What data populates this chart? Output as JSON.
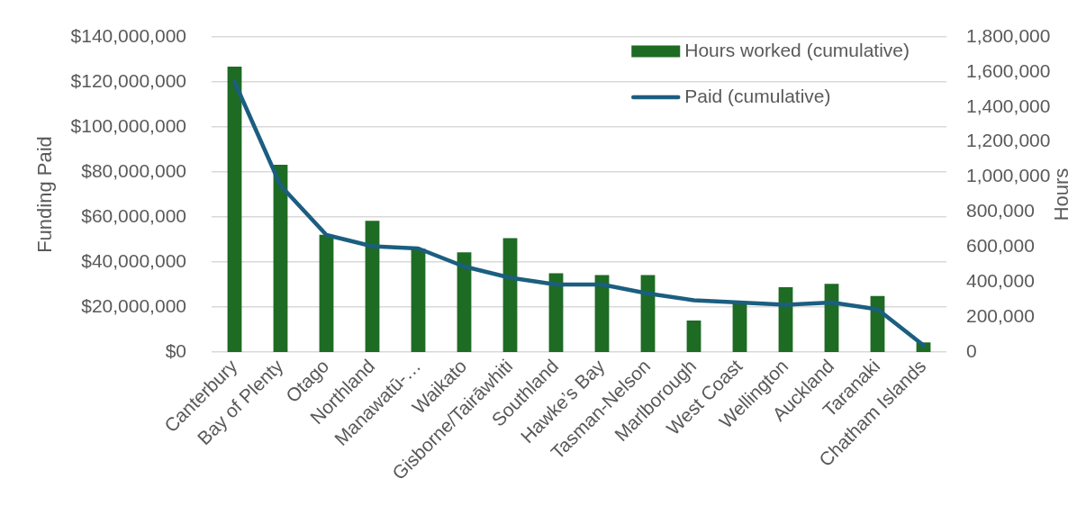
{
  "chart_data": {
    "type": "bar",
    "categories": [
      "Canterbury",
      "Bay of Plenty",
      "Otago",
      "Northland",
      "Manawatū-…",
      "Waikato",
      "Gisborne/Tairāwhiti",
      "Southland",
      "Hawke’s Bay",
      "Tasman-Nelson",
      "Marlborough",
      "West Coast",
      "Wellington",
      "Auckland",
      "Taranaki",
      "Chatham Islands"
    ],
    "ylabel": "Funding Paid",
    "y2label": "Hours",
    "ylim": [
      0,
      140000000
    ],
    "yticks": [
      {
        "value": 0,
        "label": "$0"
      },
      {
        "value": 20000000,
        "label": "$20,000,000"
      },
      {
        "value": 40000000,
        "label": "$40,000,000"
      },
      {
        "value": 60000000,
        "label": "$60,000,000"
      },
      {
        "value": 80000000,
        "label": "$80,000,000"
      },
      {
        "value": 100000000,
        "label": "$100,000,000"
      },
      {
        "value": 120000000,
        "label": "$120,000,000"
      },
      {
        "value": 140000000,
        "label": "$140,000,000"
      }
    ],
    "y2lim": [
      0,
      1800000
    ],
    "y2ticks": [
      0,
      {
        "value": 200000,
        "label": "200,000"
      },
      {
        "value": 400000,
        "label": "400,000"
      },
      {
        "value": 600000,
        "label": "600,000"
      },
      {
        "value": 800000,
        "label": "800,000"
      },
      {
        "value": 1000000,
        "label": "1,000,000"
      },
      {
        "value": 1200000,
        "label": "1,200,000"
      },
      {
        "value": 1400000,
        "label": "1,400,000"
      },
      {
        "value": 1600000,
        "label": "1,600,000"
      },
      {
        "value": 1800000,
        "label": "1,800,000"
      }
    ],
    "series": [
      {
        "name": "Hours worked (cumulative)",
        "axis": "y2",
        "color": "#1e6b24",
        "values": [
          1630000,
          1070000,
          670000,
          750000,
          590000,
          570000,
          650000,
          450000,
          440000,
          440000,
          180000,
          280000,
          370000,
          390000,
          320000,
          55000
        ]
      },
      {
        "name": "Paid (cumulative)",
        "type": "line",
        "axis": "y",
        "color": "#1b5e80",
        "values": [
          120000000,
          74000000,
          52000000,
          47000000,
          46000000,
          38000000,
          33000000,
          30000000,
          30000000,
          26000000,
          23000000,
          22000000,
          21000000,
          22000000,
          19000000,
          3000000
        ]
      }
    ],
    "grid": "y",
    "legend": "top right"
  }
}
